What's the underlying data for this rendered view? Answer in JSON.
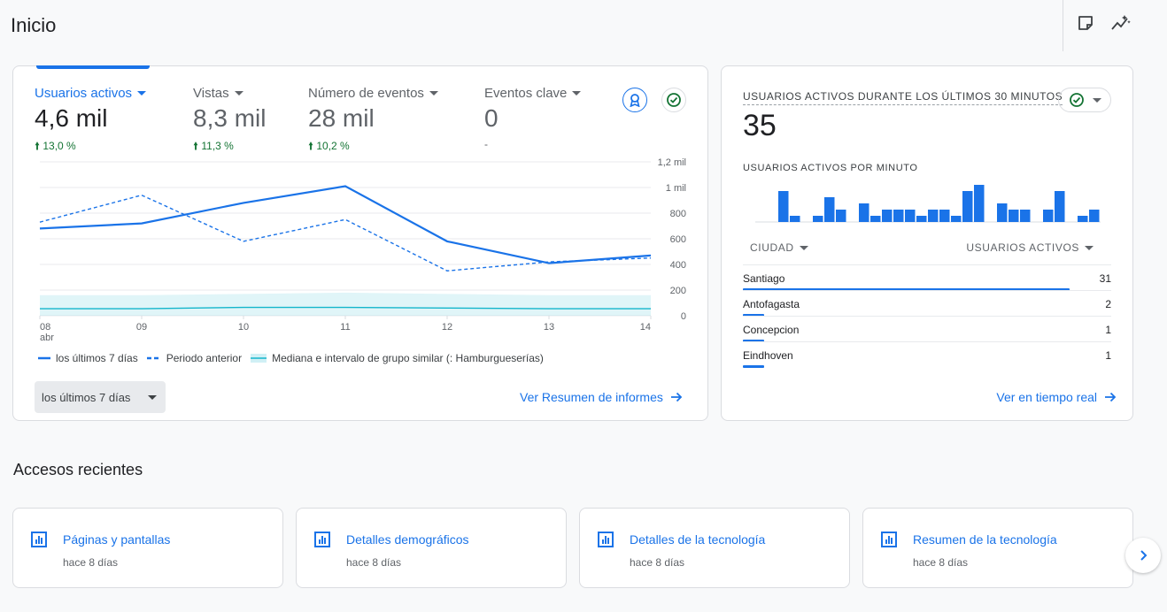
{
  "page": {
    "title": "Inicio"
  },
  "overview": {
    "metrics": [
      {
        "label": "Usuarios activos",
        "value": "4,6 mil",
        "delta": "13,0 %",
        "active": true
      },
      {
        "label": "Vistas",
        "value": "8,3 mil",
        "delta": "11,3 %",
        "active": false
      },
      {
        "label": "Número de eventos",
        "value": "28 mil",
        "delta": "10,2 %",
        "active": false
      },
      {
        "label": "Eventos clave",
        "value": "0",
        "delta": "-",
        "active": false
      }
    ],
    "legend": {
      "current": "los últimos 7 días",
      "previous": "Periodo anterior",
      "benchmark": "Mediana e intervalo de grupo similar (: Hamburgueserías)"
    },
    "range_label": "los últimos 7 días",
    "report_link": "Ver Resumen de informes",
    "colors": {
      "accent": "#1a73e8",
      "benchmark": "#12b5cb",
      "positive": "#137333"
    }
  },
  "chart_data": {
    "type": "line",
    "categories": [
      "08",
      "09",
      "10",
      "11",
      "12",
      "13",
      "14"
    ],
    "x_sublabel": "abr",
    "y_ticks": [
      "1,2 mil",
      "1 mil",
      "800",
      "600",
      "400",
      "200",
      "0"
    ],
    "ylim": [
      0,
      1200
    ],
    "series": [
      {
        "name": "los últimos 7 días",
        "values": [
          680,
          720,
          880,
          1010,
          580,
          410,
          470
        ]
      },
      {
        "name": "Periodo anterior",
        "values": [
          730,
          940,
          580,
          750,
          350,
          420,
          450
        ]
      },
      {
        "name": "Mediana e intervalo de grupo similar (: Hamburgueserías)",
        "values": [
          55,
          55,
          65,
          65,
          60,
          55,
          55
        ],
        "band_low": [
          0,
          0,
          0,
          0,
          0,
          0,
          0
        ],
        "band_high": [
          160,
          160,
          170,
          180,
          170,
          160,
          160
        ]
      }
    ]
  },
  "realtime": {
    "title": "USUARIOS ACTIVOS DURANTE LOS ÚLTIMOS 30 MINUTOS",
    "value": "35",
    "per_minute_label": "USUARIOS ACTIVOS POR MINUTO",
    "per_minute_values": [
      0,
      0,
      5,
      1,
      0,
      1,
      4,
      2,
      0,
      3,
      1,
      2,
      2,
      2,
      1,
      2,
      2,
      1,
      5,
      6,
      0,
      3,
      2,
      2,
      0,
      2,
      5,
      0,
      1,
      2
    ],
    "col_city": "CIUDAD",
    "col_users": "USUARIOS ACTIVOS",
    "rows": [
      {
        "city": "Santiago",
        "users": "31",
        "share": 0.886
      },
      {
        "city": "Antofagasta",
        "users": "2",
        "share": 0.057
      },
      {
        "city": "Concepcion",
        "users": "1",
        "share": 0.029
      },
      {
        "city": "Eindhoven",
        "users": "1",
        "share": 0.029
      }
    ],
    "link": "Ver en tiempo real"
  },
  "recent": {
    "title": "Accesos recientes",
    "items": [
      {
        "title": "Páginas y pantallas",
        "sub": "hace 8 días"
      },
      {
        "title": "Detalles demográficos",
        "sub": "hace 8 días"
      },
      {
        "title": "Detalles de la tecnología",
        "sub": "hace 8 días"
      },
      {
        "title": "Resumen de la tecnología",
        "sub": "hace 8 días"
      }
    ]
  },
  "icons": {
    "notes": "sticky-note-icon",
    "insights": "insights-sparkle-icon",
    "benchmark": "award-ribbon-icon",
    "check": "check-circle-icon",
    "report": "bar-chart-icon",
    "arrow": "arrow-right-icon",
    "next": "chevron-right-icon"
  }
}
